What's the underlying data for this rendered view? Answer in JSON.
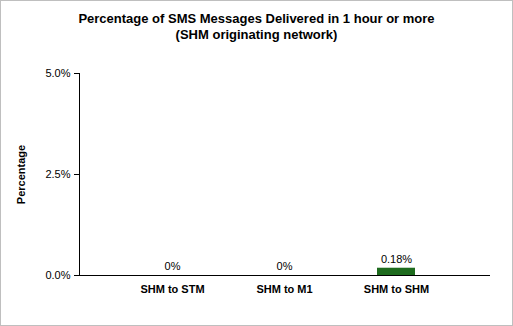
{
  "chart_data": {
    "type": "bar",
    "title": "Percentage of SMS Messages Delivered in 1 hour or more",
    "subtitle": "(SHM originating network)",
    "y_label": "Percentage",
    "categories": [
      "SHM to STM",
      "SHM to M1",
      "SHM to SHM"
    ],
    "values": [
      0,
      0,
      0.18
    ],
    "value_labels": [
      "0%",
      "0%",
      "0.18%"
    ],
    "data_labels": true,
    "color": "#1e6b1e",
    "ylim": [
      0,
      5
    ],
    "yticks": [
      {
        "value": 0,
        "label": "0.0%"
      },
      {
        "value": 2.5,
        "label": "2.5%"
      },
      {
        "value": 5,
        "label": "5.0%"
      }
    ],
    "grid": false
  }
}
